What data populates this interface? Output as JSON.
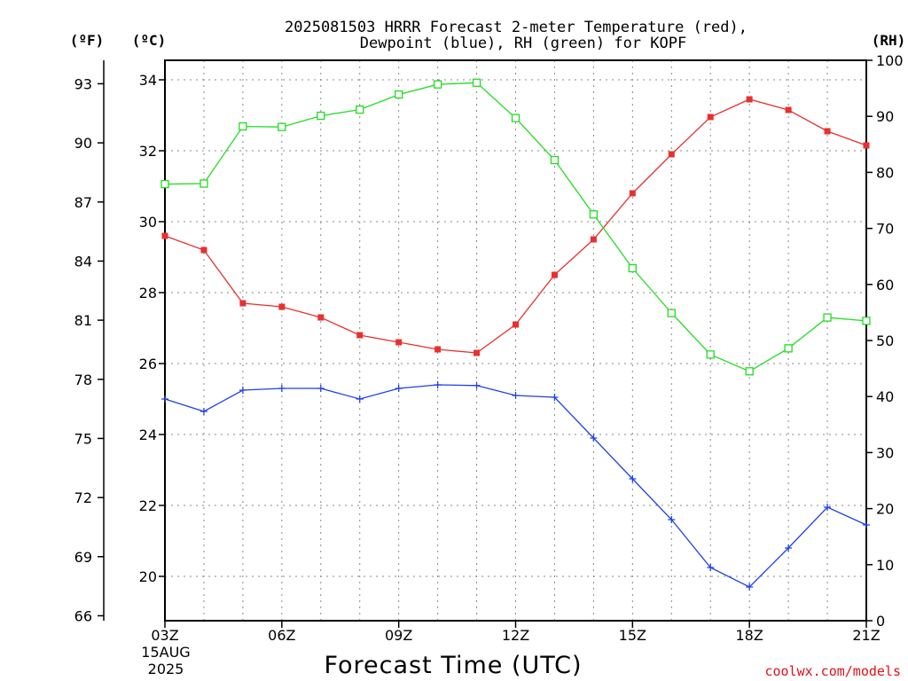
{
  "chart_data": {
    "type": "line",
    "title_line1": "2025081503 HRRR Forecast 2-meter Temperature (red),",
    "title_line2": "Dewpoint (blue), RH (green) for KOPF",
    "xlabel": "Forecast Time (UTC)",
    "start_date_line1": "15AUG",
    "start_date_line2": "2025",
    "credit": "coolwx.com/models",
    "x_ticks": [
      "03Z",
      "06Z",
      "09Z",
      "12Z",
      "15Z",
      "18Z",
      "21Z"
    ],
    "x_hours": [
      3,
      4,
      5,
      6,
      7,
      8,
      9,
      10,
      11,
      12,
      13,
      14,
      15,
      16,
      17,
      18,
      19,
      20,
      21
    ],
    "xlim": [
      3,
      21
    ],
    "celsius_axis": {
      "label": "(ºC)",
      "ticks": [
        20,
        22,
        24,
        26,
        28,
        30,
        32,
        34
      ],
      "ylim": [
        18.75,
        34.55
      ]
    },
    "fahrenheit_axis": {
      "label": "(ºF)",
      "ticks": [
        66,
        69,
        72,
        75,
        78,
        81,
        84,
        87,
        90,
        93
      ]
    },
    "rh_axis": {
      "label": "(RH)",
      "ticks": [
        0,
        10,
        20,
        30,
        40,
        50,
        60,
        70,
        80,
        90,
        100
      ],
      "ylim": [
        0,
        100
      ]
    },
    "grid": true,
    "series": [
      {
        "name": "Temperature",
        "axis": "celsius",
        "color": "#e83030",
        "marker": "filled-square",
        "values": [
          29.6,
          29.2,
          27.7,
          27.6,
          27.3,
          26.8,
          26.6,
          26.4,
          26.3,
          27.1,
          28.5,
          29.5,
          30.8,
          31.9,
          32.95,
          33.45,
          33.15,
          32.55,
          32.15
        ]
      },
      {
        "name": "Dewpoint",
        "axis": "celsius",
        "color": "#2040e8",
        "marker": "plus",
        "values": [
          25.0,
          24.65,
          25.25,
          25.3,
          25.3,
          25.0,
          25.3,
          25.4,
          25.38,
          25.1,
          25.05,
          23.9,
          22.75,
          21.6,
          20.25,
          19.7,
          20.8,
          21.95,
          21.45
        ]
      },
      {
        "name": "RH",
        "axis": "rh",
        "color": "#22dd22",
        "marker": "open-square",
        "values": [
          77.9,
          78.0,
          88.2,
          88.1,
          90.1,
          91.2,
          93.9,
          95.7,
          96.0,
          89.7,
          82.2,
          72.5,
          62.9,
          54.9,
          47.5,
          44.5,
          48.6,
          54.1,
          53.5
        ]
      }
    ]
  }
}
